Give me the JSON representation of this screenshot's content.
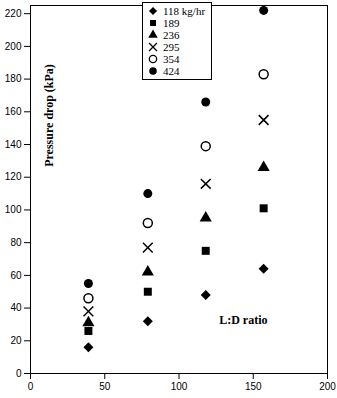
{
  "chart_data": {
    "type": "scatter",
    "xlabel": "L:D ratio",
    "ylabel": "Pressure drop (kPa)",
    "x": [
      39,
      79,
      118,
      157
    ],
    "xlim": [
      0,
      200
    ],
    "xticks": [
      0,
      50,
      100,
      150,
      200
    ],
    "ylim": [
      0,
      225
    ],
    "yticks": [
      0,
      20,
      40,
      60,
      80,
      100,
      120,
      140,
      160,
      180,
      200,
      220
    ],
    "grid": false,
    "legend": "top",
    "series": [
      {
        "name": "118 kg/hr",
        "color": "#000000",
        "marker": "diamond",
        "values": [
          16,
          32,
          48,
          64
        ]
      },
      {
        "name": "189",
        "color": "#000000",
        "marker": "square",
        "values": [
          26,
          50,
          75,
          101
        ]
      },
      {
        "name": "236",
        "color": "#000000",
        "marker": "triangle",
        "values": [
          31,
          62,
          95,
          126
        ]
      },
      {
        "name": "295",
        "color": "#000000",
        "marker": "x",
        "values": [
          38,
          77,
          116,
          155
        ]
      },
      {
        "name": "354",
        "color": "#000000",
        "marker": "circle_open",
        "values": [
          46,
          92,
          139,
          183
        ]
      },
      {
        "name": "424",
        "color": "#000000",
        "marker": "circle",
        "values": [
          55,
          110,
          166,
          222
        ]
      }
    ]
  }
}
